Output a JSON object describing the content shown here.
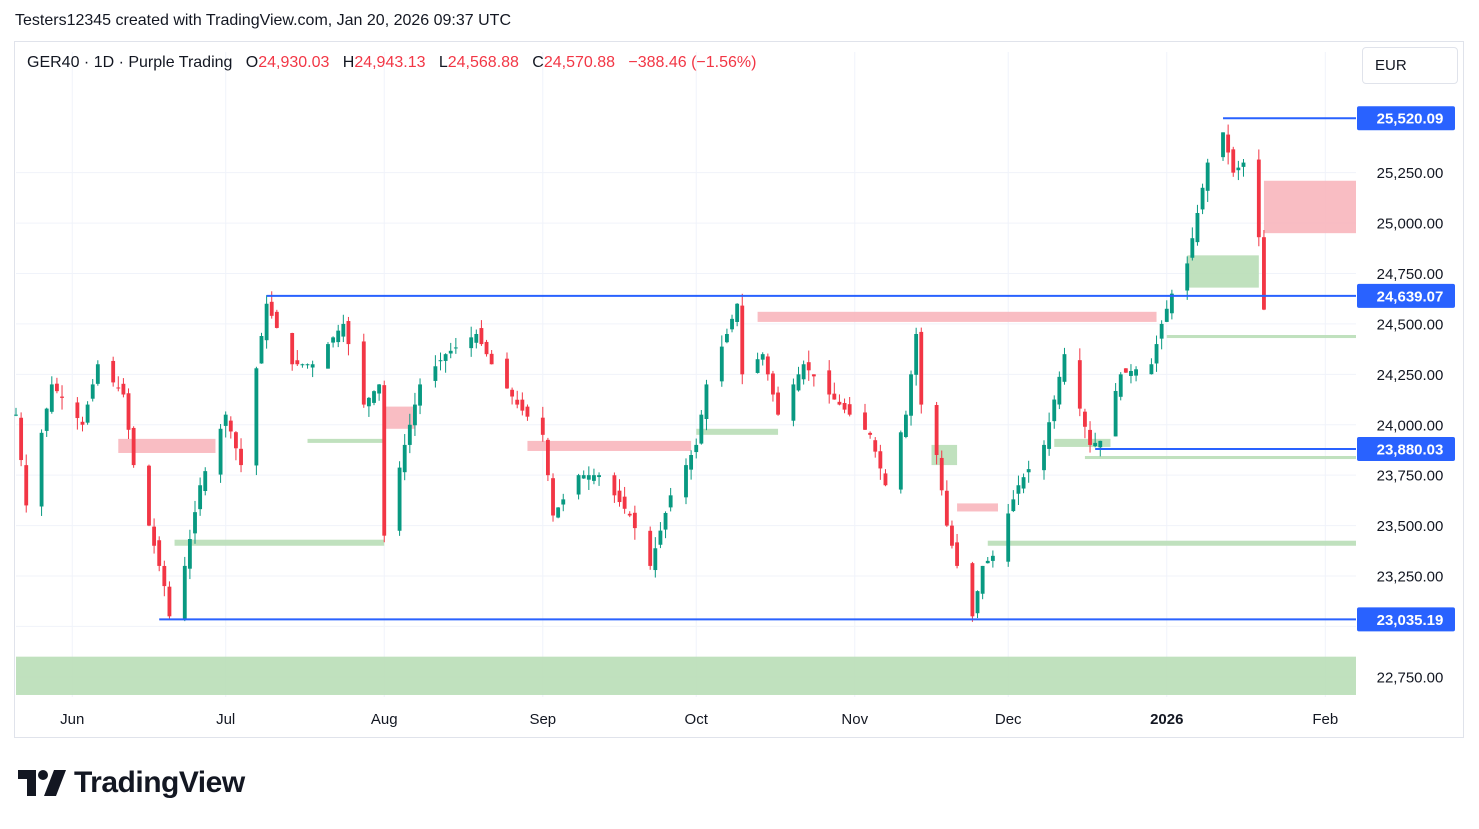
{
  "header": {
    "text": "Testers12345 created with TradingView.com, Jan 20, 2026 09:37 UTC"
  },
  "legend": {
    "symbol": "GER40 · 1D · Purple Trading",
    "open_label": "O",
    "open": "24,930.03",
    "high_label": "H",
    "high": "24,943.13",
    "low_label": "L",
    "low": "24,568.88",
    "close_label": "C",
    "close": "24,570.88",
    "change": "−388.46 (−1.56%)"
  },
  "currency": "EUR",
  "colors": {
    "up": "#089981",
    "down": "#f23645",
    "level_line": "#2962ff",
    "bull_zone": "#b9deb7",
    "bear_zone": "#f8b6bd",
    "grid": "#f0f3fa"
  },
  "chart_data": {
    "type": "candlestick",
    "y_ticks": [
      22750,
      23000,
      23250,
      23500,
      23750,
      24000,
      24250,
      24500,
      24750,
      25000,
      25250
    ],
    "y_tick_labels": [
      "22,750.00",
      "",
      "23,250.00",
      "23,500.00",
      "23,750.00",
      "24,000.00",
      "24,250.00",
      "24,500.00",
      "24,750.00",
      "25,000.00",
      "25,250.00"
    ],
    "ylim": [
      22650,
      25650
    ],
    "x_labels": [
      {
        "label": "Jun",
        "date": "2025-06-01"
      },
      {
        "label": "Jul",
        "date": "2025-07-01"
      },
      {
        "label": "Aug",
        "date": "2025-08-01"
      },
      {
        "label": "Sep",
        "date": "2025-09-01"
      },
      {
        "label": "Oct",
        "date": "2025-10-01"
      },
      {
        "label": "Nov",
        "date": "2025-11-01"
      },
      {
        "label": "Dec",
        "date": "2025-12-01"
      },
      {
        "label": "2026",
        "date": "2026-01-01",
        "bold": true
      },
      {
        "label": "Feb",
        "date": "2026-02-01"
      }
    ],
    "xlim": [
      "2025-05-21",
      "2026-02-07"
    ],
    "levels": [
      {
        "value": 25520.09,
        "label": "25,520.09",
        "from": "2026-01-12"
      },
      {
        "value": 24639.07,
        "label": "24,639.07",
        "from": "2025-07-09"
      },
      {
        "value": 23880.03,
        "label": "23,880.03",
        "from": "2025-12-18"
      },
      {
        "value": 23035.19,
        "label": "23,035.19",
        "from": "2025-06-18"
      }
    ],
    "zones": [
      {
        "kind": "bear",
        "from": "2026-01-20",
        "to": "2026-02-07",
        "low": 24950,
        "high": 25210
      },
      {
        "kind": "bear",
        "from": "2025-10-13",
        "to": "2025-12-30",
        "low": 24510,
        "high": 24560
      },
      {
        "kind": "bear",
        "from": "2025-06-10",
        "to": "2025-06-29",
        "low": 23860,
        "high": 23930
      },
      {
        "kind": "bear",
        "from": "2025-08-01",
        "to": "2025-08-07",
        "low": 23980,
        "high": 24090
      },
      {
        "kind": "bear",
        "from": "2025-08-29",
        "to": "2025-09-30",
        "low": 23870,
        "high": 23920
      },
      {
        "kind": "bear",
        "from": "2025-11-21",
        "to": "2025-11-29",
        "low": 23570,
        "high": 23610
      },
      {
        "kind": "bull",
        "from": "2026-01-05",
        "to": "2026-01-19",
        "low": 24680,
        "high": 24840
      },
      {
        "kind": "bull",
        "from": "2025-07-17",
        "to": "2025-08-01",
        "low": 23910,
        "high": 23930
      },
      {
        "kind": "bull",
        "from": "2025-06-21",
        "to": "2025-08-01",
        "low": 23400,
        "high": 23430
      },
      {
        "kind": "bull",
        "from": "2025-10-01",
        "to": "2025-10-17",
        "low": 23950,
        "high": 23980
      },
      {
        "kind": "bull",
        "from": "2025-11-16",
        "to": "2025-11-21",
        "low": 23800,
        "high": 23900
      },
      {
        "kind": "bull",
        "from": "2025-12-10",
        "to": "2025-12-21",
        "low": 23890,
        "high": 23930
      },
      {
        "kind": "bull",
        "from": "2025-12-16",
        "to": "2026-02-07",
        "low": 23830,
        "high": 23845
      },
      {
        "kind": "bull",
        "from": "2025-11-27",
        "to": "2026-02-07",
        "low": 23400,
        "high": 23425
      },
      {
        "kind": "bull",
        "from": "2026-01-01",
        "to": "2026-02-07",
        "low": 24430,
        "high": 24445
      },
      {
        "kind": "bull",
        "from": "2025-05-21",
        "to": "2026-02-07",
        "low": 22660,
        "high": 22850
      }
    ],
    "anchors": [
      [
        "2025-05-21",
        24050
      ],
      [
        "2025-05-23",
        23600
      ],
      [
        "2025-05-28",
        24200
      ],
      [
        "2025-06-03",
        24000
      ],
      [
        "2025-06-06",
        24300
      ],
      [
        "2025-06-11",
        24150
      ],
      [
        "2025-06-13",
        23800
      ],
      [
        "2025-06-16",
        23500
      ],
      [
        "2025-06-19",
        23200
      ],
      [
        "2025-06-20",
        23050
      ],
      [
        "2025-06-23",
        23300
      ],
      [
        "2025-06-26",
        23700
      ],
      [
        "2025-07-01",
        24050
      ],
      [
        "2025-07-04",
        23800
      ],
      [
        "2025-07-09",
        24600
      ],
      [
        "2025-07-14",
        24300
      ],
      [
        "2025-07-18",
        24300
      ],
      [
        "2025-07-24",
        24500
      ],
      [
        "2025-07-28",
        24100
      ],
      [
        "2025-07-31",
        24200
      ],
      [
        "2025-08-01",
        23450
      ],
      [
        "2025-08-05",
        23900
      ],
      [
        "2025-08-08",
        24200
      ],
      [
        "2025-08-13",
        24350
      ],
      [
        "2025-08-19",
        24450
      ],
      [
        "2025-08-22",
        24300
      ],
      [
        "2025-08-27",
        24100
      ],
      [
        "2025-09-01",
        23950
      ],
      [
        "2025-09-03",
        23550
      ],
      [
        "2025-09-08",
        23750
      ],
      [
        "2025-09-12",
        23750
      ],
      [
        "2025-09-18",
        23550
      ],
      [
        "2025-09-22",
        23300
      ],
      [
        "2025-09-26",
        23650
      ],
      [
        "2025-10-01",
        23900
      ],
      [
        "2025-10-03",
        24200
      ],
      [
        "2025-10-07",
        24450
      ],
      [
        "2025-10-09",
        24600
      ],
      [
        "2025-10-10",
        24250
      ],
      [
        "2025-10-14",
        24350
      ],
      [
        "2025-10-17",
        24050
      ],
      [
        "2025-10-22",
        24300
      ],
      [
        "2025-10-27",
        24150
      ],
      [
        "2025-10-31",
        24050
      ],
      [
        "2025-11-04",
        23950
      ],
      [
        "2025-11-07",
        23700
      ],
      [
        "2025-11-11",
        24050
      ],
      [
        "2025-11-13",
        24450
      ],
      [
        "2025-11-14",
        24100
      ],
      [
        "2025-11-17",
        23850
      ],
      [
        "2025-11-19",
        23500
      ],
      [
        "2025-11-21",
        23300
      ],
      [
        "2025-11-24",
        23050
      ],
      [
        "2025-11-26",
        23300
      ],
      [
        "2025-11-28",
        23350
      ],
      [
        "2025-12-03",
        23700
      ],
      [
        "2025-12-08",
        23900
      ],
      [
        "2025-12-12",
        24350
      ],
      [
        "2025-12-17",
        23900
      ],
      [
        "2025-12-19",
        23920
      ],
      [
        "2025-12-23",
        24250
      ],
      [
        "2025-12-29",
        24300
      ],
      [
        "2025-12-31",
        24500
      ],
      [
        "2026-01-02",
        24650
      ],
      [
        "2026-01-05",
        24800
      ],
      [
        "2026-01-07",
        25050
      ],
      [
        "2026-01-09",
        25300
      ],
      [
        "2026-01-12",
        25450
      ],
      [
        "2026-01-14",
        25250
      ],
      [
        "2026-01-16",
        25300
      ],
      [
        "2026-01-19",
        24930
      ],
      [
        "2026-01-20",
        24570.88
      ]
    ]
  }
}
